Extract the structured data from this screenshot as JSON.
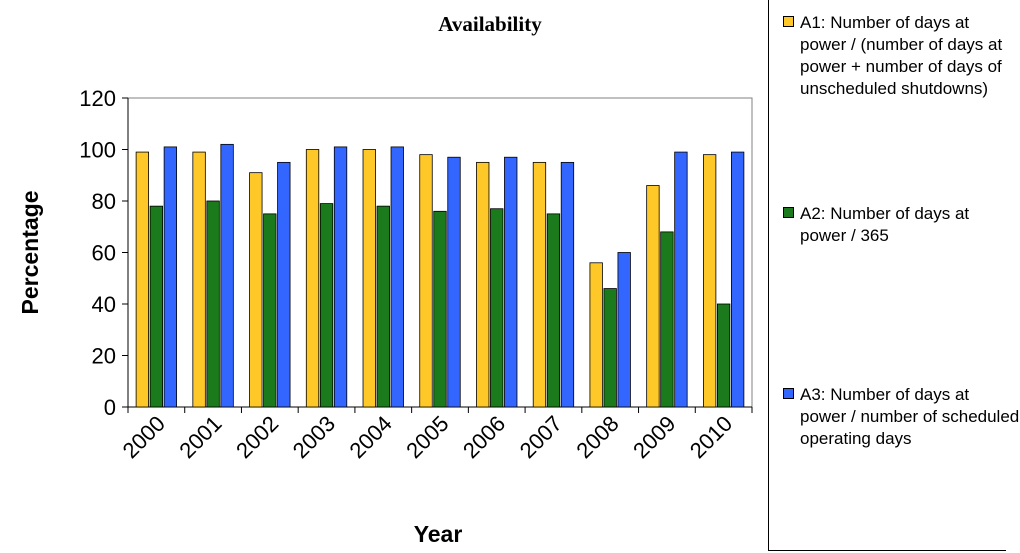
{
  "chart_data": {
    "type": "bar",
    "title": "Availability",
    "xlabel": "Year",
    "ylabel": "Percentage",
    "ylim": [
      0,
      120
    ],
    "yticks": [
      0,
      20,
      40,
      60,
      80,
      100,
      120
    ],
    "grid": false,
    "legend_position": "right",
    "categories": [
      "2000",
      "2001",
      "2002",
      "2003",
      "2004",
      "2005",
      "2006",
      "2007",
      "2008",
      "2009",
      "2010"
    ],
    "series": [
      {
        "name": "A1: Number of days at power / (number of days at power + number of days of unscheduled shutdowns)",
        "color": "#FFC829",
        "values": [
          99,
          99,
          91,
          100,
          100,
          98,
          95,
          95,
          56,
          86,
          98
        ]
      },
      {
        "name": "A2: Number of days at power / 365",
        "color": "#1B7A1B",
        "values": [
          78,
          80,
          75,
          79,
          78,
          76,
          77,
          75,
          46,
          68,
          40
        ]
      },
      {
        "name": "A3: Number of days at power / number of scheduled operating days",
        "color": "#3366FF",
        "values": [
          101,
          102,
          95,
          101,
          101,
          97,
          97,
          95,
          60,
          99,
          99
        ]
      }
    ]
  }
}
